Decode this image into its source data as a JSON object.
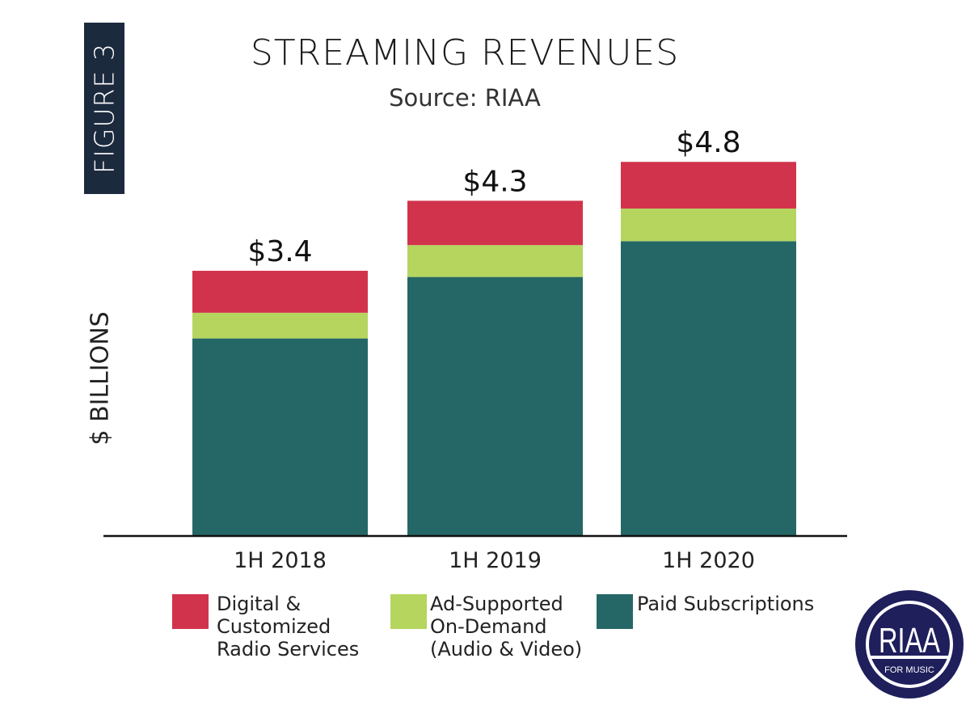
{
  "figure_label": "FIGURE 3",
  "chart_data": {
    "type": "bar",
    "stacked": true,
    "title": "STREAMING REVENUES",
    "subtitle": "Source: RIAA",
    "xlabel": "",
    "ylabel": "$ BILLIONS",
    "categories": [
      "1H 2018",
      "1H 2019",
      "1H 2020"
    ],
    "series": [
      {
        "name": "Paid Subscriptions",
        "color": "#256766",
        "values": [
          2.53,
          3.32,
          3.78
        ]
      },
      {
        "name": "Ad-Supported On-Demand (Audio & Video)",
        "color": "#b5d55f",
        "values": [
          0.33,
          0.41,
          0.42
        ]
      },
      {
        "name": "Digital & Customized Radio Services",
        "color": "#d2334c",
        "values": [
          0.54,
          0.57,
          0.6
        ]
      }
    ],
    "totals": [
      3.4,
      4.3,
      4.8
    ],
    "total_labels": [
      "$3.4",
      "$4.3",
      "$4.8"
    ],
    "ylim": [
      0,
      5.3
    ],
    "grid": false,
    "legend_placement": "bottom"
  },
  "legend": [
    {
      "label": "Digital &\nCustomized\nRadio Services",
      "color": "#d2334c"
    },
    {
      "label": "Ad-Supported\nOn-Demand\n(Audio & Video)",
      "color": "#b5d55f"
    },
    {
      "label": "Paid Subscriptions",
      "color": "#256766"
    }
  ],
  "logo": {
    "text": "RIAA",
    "tagline": "FOR MUSIC",
    "color": "#1f1f5c"
  }
}
